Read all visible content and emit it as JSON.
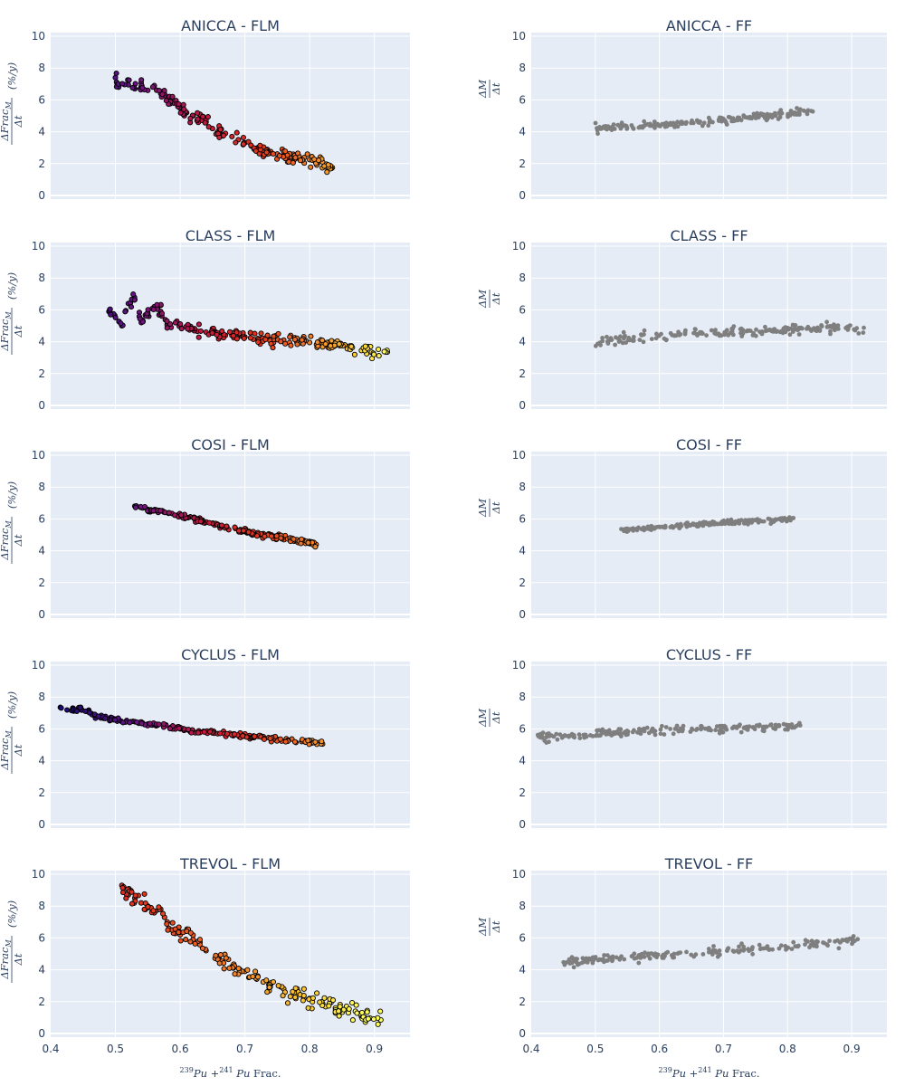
{
  "chart_data": [
    {
      "type": "scatter",
      "title": "ANICCA - FLM",
      "ylabel": "ΔFrac_M / Δt (%/y)",
      "ylim": [
        0,
        10
      ],
      "xlim": [
        0.4,
        0.955
      ],
      "colors": "plasma-like dark-to-yellow gradient by x",
      "points": [
        [
          0.5,
          7.4
        ],
        [
          0.505,
          6.8
        ],
        [
          0.52,
          6.95
        ],
        [
          0.53,
          6.7
        ],
        [
          0.54,
          6.85
        ],
        [
          0.55,
          6.6
        ],
        [
          0.56,
          6.9
        ],
        [
          0.57,
          6.4
        ],
        [
          0.58,
          6.1
        ],
        [
          0.59,
          5.8
        ],
        [
          0.6,
          5.5
        ],
        [
          0.61,
          5.2
        ],
        [
          0.62,
          5.0
        ],
        [
          0.63,
          4.8
        ],
        [
          0.64,
          4.6
        ],
        [
          0.65,
          4.2
        ],
        [
          0.66,
          4.05
        ],
        [
          0.67,
          3.9
        ],
        [
          0.68,
          3.7
        ],
        [
          0.69,
          3.5
        ],
        [
          0.7,
          3.3
        ],
        [
          0.71,
          3.1
        ],
        [
          0.72,
          3.0
        ],
        [
          0.73,
          2.8
        ],
        [
          0.74,
          2.75
        ],
        [
          0.75,
          2.6
        ],
        [
          0.76,
          2.5
        ],
        [
          0.77,
          2.4
        ],
        [
          0.78,
          2.35
        ],
        [
          0.79,
          2.3
        ],
        [
          0.8,
          2.25
        ],
        [
          0.81,
          2.2
        ],
        [
          0.82,
          2.1
        ],
        [
          0.835,
          1.75
        ]
      ],
      "band_n": 150,
      "band_spread": 0.35
    },
    {
      "type": "scatter",
      "title": "ANICCA - FF",
      "ylabel": "ΔM / Δt",
      "ylim": [
        0,
        10
      ],
      "xlim": [
        0.4,
        0.955
      ],
      "color": "#7f7f7f",
      "trend": [
        [
          0.5,
          4.25
        ],
        [
          0.6,
          4.4
        ],
        [
          0.7,
          4.75
        ],
        [
          0.8,
          5.1
        ],
        [
          0.84,
          5.3
        ]
      ],
      "band_n": 180,
      "band_spread": 0.18,
      "x_range": [
        0.5,
        0.84
      ]
    },
    {
      "type": "scatter",
      "title": "CLASS - FLM",
      "ylabel": "ΔFrac_M / Δt (%/y)",
      "ylim": [
        0,
        10
      ],
      "xlim": [
        0.4,
        0.955
      ],
      "colors": "plasma-like dark-to-yellow gradient by x",
      "points": [
        [
          0.49,
          5.9
        ],
        [
          0.51,
          5.0
        ],
        [
          0.52,
          6.4
        ],
        [
          0.53,
          6.65
        ],
        [
          0.54,
          5.2
        ],
        [
          0.56,
          6.2
        ],
        [
          0.57,
          5.9
        ],
        [
          0.58,
          5.1
        ],
        [
          0.6,
          5.05
        ],
        [
          0.62,
          4.8
        ],
        [
          0.64,
          4.6
        ],
        [
          0.66,
          4.5
        ],
        [
          0.68,
          4.4
        ],
        [
          0.7,
          4.3
        ],
        [
          0.72,
          4.2
        ],
        [
          0.74,
          4.15
        ],
        [
          0.76,
          4.1
        ],
        [
          0.78,
          4.0
        ],
        [
          0.8,
          3.95
        ],
        [
          0.82,
          3.85
        ],
        [
          0.84,
          3.8
        ],
        [
          0.86,
          3.7
        ],
        [
          0.88,
          3.45
        ],
        [
          0.92,
          3.35
        ]
      ],
      "band_n": 200,
      "band_spread": 0.3
    },
    {
      "type": "scatter",
      "title": "CLASS - FF",
      "ylabel": "ΔM / Δt",
      "ylim": [
        0,
        10
      ],
      "xlim": [
        0.4,
        0.955
      ],
      "color": "#7f7f7f",
      "trend": [
        [
          0.5,
          4.0
        ],
        [
          0.6,
          4.3
        ],
        [
          0.7,
          4.55
        ],
        [
          0.8,
          4.8
        ],
        [
          0.88,
          4.9
        ],
        [
          0.92,
          4.7
        ]
      ],
      "band_n": 190,
      "band_spread": 0.25,
      "x_range": [
        0.5,
        0.92
      ]
    },
    {
      "type": "scatter",
      "title": "COSI - FLM",
      "ylabel": "ΔFrac_M / Δt (%/y)",
      "ylim": [
        0,
        10
      ],
      "xlim": [
        0.4,
        0.955
      ],
      "colors": "plasma-like dark-to-yellow gradient by x",
      "points": [
        [
          0.53,
          6.8
        ],
        [
          0.55,
          6.6
        ],
        [
          0.57,
          6.5
        ],
        [
          0.6,
          6.2
        ],
        [
          0.63,
          5.9
        ],
        [
          0.66,
          5.6
        ],
        [
          0.7,
          5.2
        ],
        [
          0.73,
          5.0
        ],
        [
          0.76,
          4.8
        ],
        [
          0.79,
          4.6
        ],
        [
          0.81,
          4.4
        ]
      ],
      "band_n": 190,
      "band_spread": 0.13
    },
    {
      "type": "scatter",
      "title": "COSI - FF",
      "ylabel": "ΔM / Δt",
      "ylim": [
        0,
        10
      ],
      "xlim": [
        0.4,
        0.955
      ],
      "color": "#7f7f7f",
      "trend": [
        [
          0.54,
          5.3
        ],
        [
          0.6,
          5.45
        ],
        [
          0.66,
          5.65
        ],
        [
          0.72,
          5.8
        ],
        [
          0.78,
          5.9
        ],
        [
          0.81,
          6.05
        ]
      ],
      "band_n": 190,
      "band_spread": 0.12,
      "x_range": [
        0.54,
        0.81
      ]
    },
    {
      "type": "scatter",
      "title": "CYCLUS - FLM",
      "ylabel": "ΔFrac_M / Δt (%/y)",
      "ylim": [
        0,
        10
      ],
      "xlim": [
        0.4,
        0.955
      ],
      "colors": "plasma-like dark-to-yellow gradient by x",
      "points": [
        [
          0.415,
          7.35
        ],
        [
          0.435,
          7.2
        ],
        [
          0.445,
          7.25
        ],
        [
          0.455,
          7.1
        ],
        [
          0.47,
          6.8
        ],
        [
          0.5,
          6.6
        ],
        [
          0.55,
          6.3
        ],
        [
          0.6,
          6.0
        ],
        [
          0.65,
          5.75
        ],
        [
          0.7,
          5.55
        ],
        [
          0.75,
          5.35
        ],
        [
          0.8,
          5.2
        ],
        [
          0.82,
          5.05
        ]
      ],
      "band_n": 200,
      "band_spread": 0.12
    },
    {
      "type": "scatter",
      "title": "CYCLUS - FF",
      "ylabel": "ΔM / Δt",
      "ylim": [
        0,
        10
      ],
      "xlim": [
        0.4,
        0.955
      ],
      "color": "#7f7f7f",
      "trend": [
        [
          0.41,
          5.55
        ],
        [
          0.45,
          5.5
        ],
        [
          0.5,
          5.7
        ],
        [
          0.6,
          5.9
        ],
        [
          0.7,
          6.05
        ],
        [
          0.8,
          6.15
        ],
        [
          0.82,
          6.2
        ]
      ],
      "band_n": 200,
      "band_spread": 0.2,
      "x_range": [
        0.41,
        0.82
      ]
    },
    {
      "type": "scatter",
      "title": "TREVOL - FLM",
      "ylabel": "ΔFrac_M / Δt (%/y)",
      "xlabel": "239Pu + 241Pu Frac.",
      "ylim": [
        0,
        10
      ],
      "xlim": [
        0.4,
        0.955
      ],
      "colors": "plasma-like red-to-yellow gradient by x",
      "points": [
        [
          0.51,
          9.3
        ],
        [
          0.52,
          8.7
        ],
        [
          0.53,
          8.5
        ],
        [
          0.55,
          8.0
        ],
        [
          0.57,
          7.8
        ],
        [
          0.58,
          7.0
        ],
        [
          0.6,
          6.2
        ],
        [
          0.62,
          5.9
        ],
        [
          0.64,
          5.2
        ],
        [
          0.66,
          4.8
        ],
        [
          0.68,
          4.2
        ],
        [
          0.7,
          3.9
        ],
        [
          0.72,
          3.6
        ],
        [
          0.74,
          3.1
        ],
        [
          0.76,
          2.8
        ],
        [
          0.78,
          2.5
        ],
        [
          0.8,
          2.2
        ],
        [
          0.82,
          1.9
        ],
        [
          0.84,
          1.6
        ],
        [
          0.86,
          1.3
        ],
        [
          0.88,
          1.05
        ],
        [
          0.91,
          0.85
        ]
      ],
      "band_n": 170,
      "band_spread": 0.45
    },
    {
      "type": "scatter",
      "title": "TREVOL - FF",
      "ylabel": "ΔM / Δt",
      "xlabel": "239Pu + 241Pu Frac.",
      "ylim": [
        0,
        10
      ],
      "xlim": [
        0.4,
        0.955
      ],
      "color": "#7f7f7f",
      "trend": [
        [
          0.455,
          4.5
        ],
        [
          0.5,
          4.6
        ],
        [
          0.6,
          4.9
        ],
        [
          0.7,
          5.15
        ],
        [
          0.8,
          5.45
        ],
        [
          0.88,
          5.7
        ],
        [
          0.91,
          5.85
        ]
      ],
      "band_n": 190,
      "band_spread": 0.25,
      "x_range": [
        0.45,
        0.91
      ]
    }
  ],
  "axes": {
    "x_ticks": [
      0.4,
      0.5,
      0.6,
      0.7,
      0.8,
      0.9
    ],
    "y_ticks": [
      0,
      2,
      4,
      6,
      8,
      10
    ]
  },
  "labels": {
    "ylabel_flm_top": "ΔFrac",
    "ylabel_flm_sub": "M",
    "ylabel_flm_bottom": "Δt",
    "ylabel_flm_units": "(%/y)",
    "ylabel_ff_top": "ΔM",
    "ylabel_ff_bottom": "Δt",
    "xlabel_sup1": "239",
    "xlabel_p1": "Pu +",
    "xlabel_sup2": "241",
    "xlabel_p2": "Pu",
    "xlabel_frac": "Frac."
  },
  "style": {
    "plot_bg": "#e5ecf6",
    "grid_color": "#ffffff",
    "text_color": "#2a3f5f",
    "ff_marker": "#7f7f7f"
  }
}
